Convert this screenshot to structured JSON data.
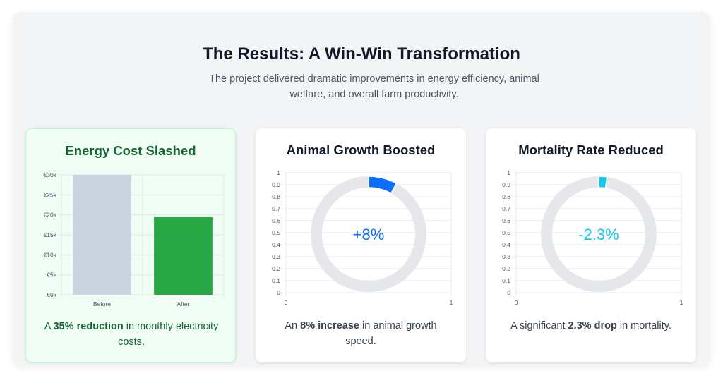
{
  "header": {
    "title": "The Results: A Win-Win Transformation",
    "subtitle": "The project delivered dramatic improvements in energy efficiency, animal welfare, and overall farm productivity."
  },
  "cards": [
    {
      "title": "Energy Cost Slashed",
      "caption_pre": "A ",
      "caption_bold": "35% reduction",
      "caption_post": " in monthly electricity costs."
    },
    {
      "title": "Animal Growth Boosted",
      "center_label": "+8%",
      "caption_pre": "An ",
      "caption_bold": "8% increase",
      "caption_post": " in animal growth speed."
    },
    {
      "title": "Mortality Rate Reduced",
      "center_label": "-2.3%",
      "caption_pre": "A significant ",
      "caption_bold": "2.3% drop",
      "caption_post": " in mortality."
    }
  ],
  "colors": {
    "before_bar": "#cbd5e1",
    "after_bar": "#28a745",
    "growth": "#0d6efd",
    "mortality": "#0dcaf0",
    "ring_track": "#e5e7eb",
    "grid": "#e5e7eb"
  },
  "chart_data": [
    {
      "type": "bar",
      "title": "Energy Cost Slashed",
      "categories": [
        "Before",
        "After"
      ],
      "values": [
        30000,
        19500
      ],
      "ylim": [
        0,
        30000
      ],
      "yticks": [
        0,
        5000,
        10000,
        15000,
        20000,
        25000,
        30000
      ],
      "ytick_labels": [
        "€0k",
        "€5k",
        "€10k",
        "€15k",
        "€20k",
        "€25k",
        "€30k"
      ],
      "grid": true
    },
    {
      "type": "pie",
      "title": "Animal Growth Boosted",
      "values": [
        8,
        92
      ],
      "yticks": [
        0,
        0.1,
        0.2,
        0.3,
        0.4,
        0.5,
        0.6,
        0.7,
        0.8,
        0.9,
        1
      ],
      "xticks": [
        0,
        1
      ],
      "grid": true
    },
    {
      "type": "pie",
      "title": "Mortality Rate Reduced",
      "values": [
        2.3,
        97.7
      ],
      "yticks": [
        0,
        0.1,
        0.2,
        0.3,
        0.4,
        0.5,
        0.6,
        0.7,
        0.8,
        0.9,
        1
      ],
      "xticks": [
        0,
        1
      ],
      "grid": true
    }
  ]
}
